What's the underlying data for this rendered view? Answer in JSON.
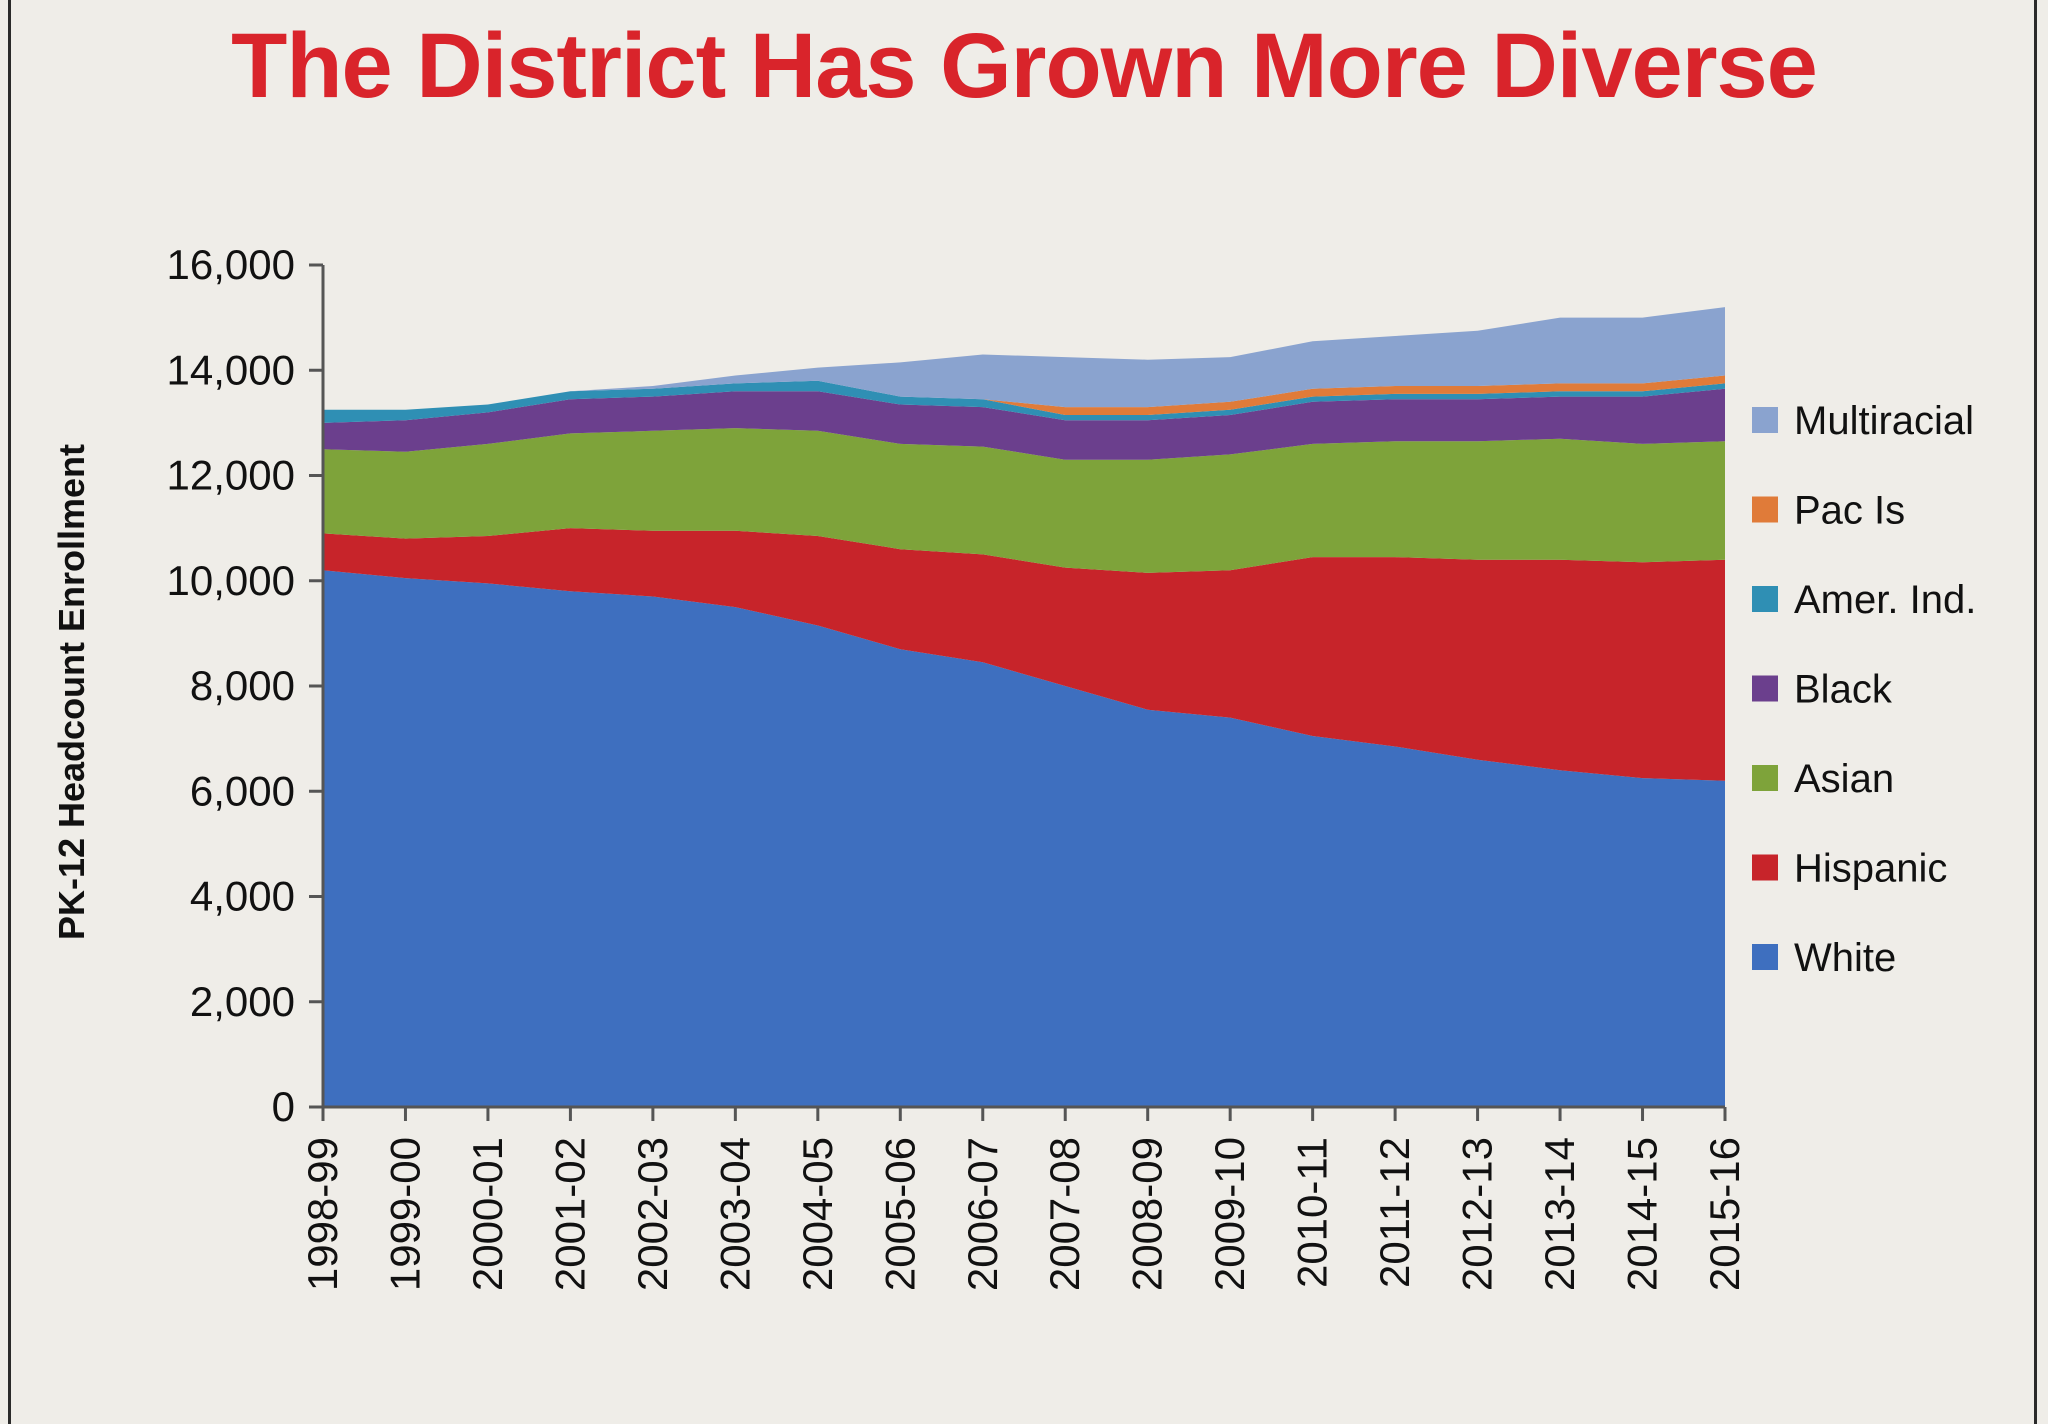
{
  "chart_data": {
    "type": "area",
    "stacked": true,
    "title": "The District Has Grown More Diverse",
    "ylabel": "PK-12 Headcount Enrollment",
    "xlabel": "",
    "ylim": [
      0,
      16000
    ],
    "yticks": [
      0,
      2000,
      4000,
      6000,
      8000,
      10000,
      12000,
      14000,
      16000
    ],
    "ytick_labels": [
      "0",
      "2,000",
      "4,000",
      "6,000",
      "8,000",
      "10,000",
      "12,000",
      "14,000",
      "16,000"
    ],
    "categories": [
      "1998-99",
      "1999-00",
      "2000-01",
      "2001-02",
      "2002-03",
      "2003-04",
      "2004-05",
      "2005-06",
      "2006-07",
      "2007-08",
      "2008-09",
      "2009-10",
      "2010-11",
      "2011-12",
      "2012-13",
      "2013-14",
      "2014-15",
      "2015-16"
    ],
    "grid": false,
    "legend_position": "right",
    "series": [
      {
        "name": "White",
        "color": "#3e6fbf",
        "values": [
          10200,
          10050,
          9950,
          9800,
          9700,
          9500,
          9150,
          8700,
          8450,
          8000,
          7550,
          7400,
          7050,
          6850,
          6600,
          6400,
          6250,
          6200
        ]
      },
      {
        "name": "Hispanic",
        "color": "#c7242a",
        "values": [
          700,
          750,
          900,
          1200,
          1250,
          1450,
          1700,
          1900,
          2050,
          2250,
          2600,
          2800,
          3400,
          3600,
          3800,
          4000,
          4100,
          4200
        ]
      },
      {
        "name": "Asian",
        "color": "#7ea33a",
        "values": [
          1600,
          1650,
          1750,
          1800,
          1900,
          1950,
          2000,
          2000,
          2050,
          2050,
          2150,
          2200,
          2150,
          2200,
          2250,
          2300,
          2250,
          2250
        ]
      },
      {
        "name": "Black",
        "color": "#6b3f8d",
        "values": [
          500,
          600,
          600,
          650,
          650,
          700,
          750,
          750,
          750,
          750,
          750,
          750,
          800,
          800,
          800,
          800,
          900,
          1000
        ]
      },
      {
        "name": "Amer. Ind.",
        "color": "#2f8fb4",
        "values": [
          250,
          200,
          150,
          150,
          150,
          150,
          200,
          150,
          150,
          100,
          100,
          100,
          100,
          100,
          100,
          100,
          100,
          100
        ]
      },
      {
        "name": "Pac Is",
        "color": "#e07b39",
        "values": [
          0,
          0,
          0,
          0,
          0,
          0,
          0,
          0,
          0,
          150,
          150,
          150,
          150,
          150,
          150,
          150,
          150,
          150
        ]
      },
      {
        "name": "Multiracial",
        "color": "#8aa3cf",
        "values": [
          0,
          0,
          0,
          0,
          50,
          150,
          250,
          650,
          850,
          950,
          900,
          850,
          900,
          950,
          1050,
          1250,
          1250,
          1300
        ]
      }
    ]
  }
}
